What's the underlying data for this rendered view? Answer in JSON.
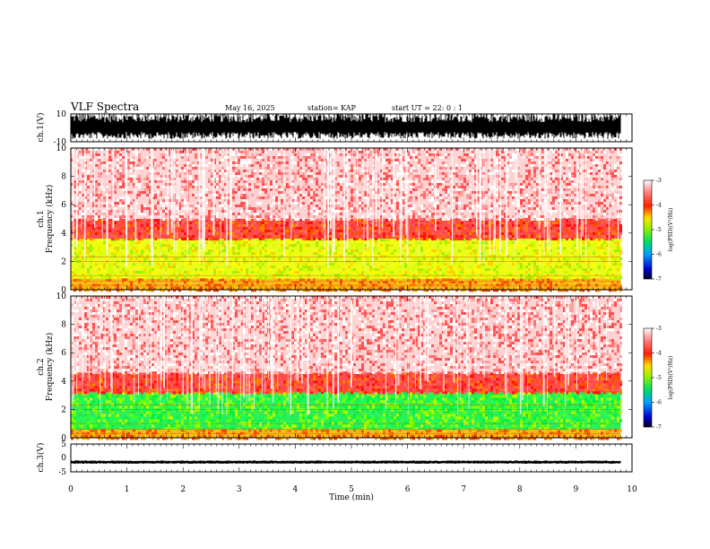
{
  "header": {
    "title": "VLF Spectra",
    "date": "May 16, 2025",
    "station": "station= KAP",
    "start": "start  UT  =   22: 0   : 1"
  },
  "chart_data": [
    {
      "type": "line",
      "name": "ch1-waveform",
      "ylabel": "ch.1(V)",
      "ylim": [
        -10,
        10
      ],
      "yticks": [
        "10",
        "-10"
      ],
      "xlim": [
        0,
        10
      ],
      "xlabel": "Time  (min)",
      "note": "dense oscillating waveform spanning roughly -8 to +10 V over 0 to 9.8 min"
    },
    {
      "type": "heatmap",
      "name": "ch1-spectrogram",
      "ylabel": "ch.1\nFrequency  (kHz)",
      "ylabel_lines": [
        "ch.1",
        "Frequency  (kHz)"
      ],
      "ylim": [
        0,
        10
      ],
      "yticks": [
        "0",
        "2",
        "4",
        "6",
        "8",
        "10"
      ],
      "xlim": [
        0,
        9.8
      ],
      "colorbar": {
        "label": "log(PSD)(V²/Hz)",
        "range": [
          -7,
          -3
        ],
        "ticks": [
          "-3",
          "-4",
          "-5",
          "-6",
          "-7"
        ]
      },
      "bands": [
        {
          "from_khz": 0.0,
          "to_khz": 0.8,
          "level": "orange"
        },
        {
          "from_khz": 0.8,
          "to_khz": 3.6,
          "level": "yellow-green"
        },
        {
          "from_khz": 3.6,
          "to_khz": 5.0,
          "level": "red"
        },
        {
          "from_khz": 5.0,
          "to_khz": 10.0,
          "level": "light-red"
        }
      ]
    },
    {
      "type": "heatmap",
      "name": "ch2-spectrogram",
      "ylabel": "ch.2\nFrequency  (kHz)",
      "ylabel_lines": [
        "ch.2",
        "Frequency  (kHz)"
      ],
      "ylim": [
        0,
        10
      ],
      "yticks": [
        "0",
        "2",
        "4",
        "6",
        "8",
        "10"
      ],
      "xlim": [
        0,
        9.8
      ],
      "colorbar": {
        "label": "log(PSD)(V²/Hz)",
        "range": [
          -7,
          -3
        ],
        "ticks": [
          "-3",
          "-4",
          "-5",
          "-6",
          "-7"
        ]
      },
      "bands": [
        {
          "from_khz": 0.0,
          "to_khz": 0.6,
          "level": "orange"
        },
        {
          "from_khz": 0.6,
          "to_khz": 3.2,
          "level": "green"
        },
        {
          "from_khz": 3.2,
          "to_khz": 4.6,
          "level": "red"
        },
        {
          "from_khz": 4.6,
          "to_khz": 10.0,
          "level": "light-red"
        }
      ]
    },
    {
      "type": "line",
      "name": "ch3-waveform",
      "ylabel": "ch.3(V)",
      "ylim": [
        -5,
        5
      ],
      "yticks": [
        "5",
        "0",
        "-5"
      ],
      "xlim": [
        0,
        10
      ],
      "xticks": [
        "0",
        "1",
        "2",
        "3",
        "4",
        "5",
        "6",
        "7",
        "8",
        "9",
        "10"
      ],
      "xlabel": "Time  (min)",
      "note": "narrow thick band around -1.5 V over 0 to 9.8 min"
    }
  ]
}
